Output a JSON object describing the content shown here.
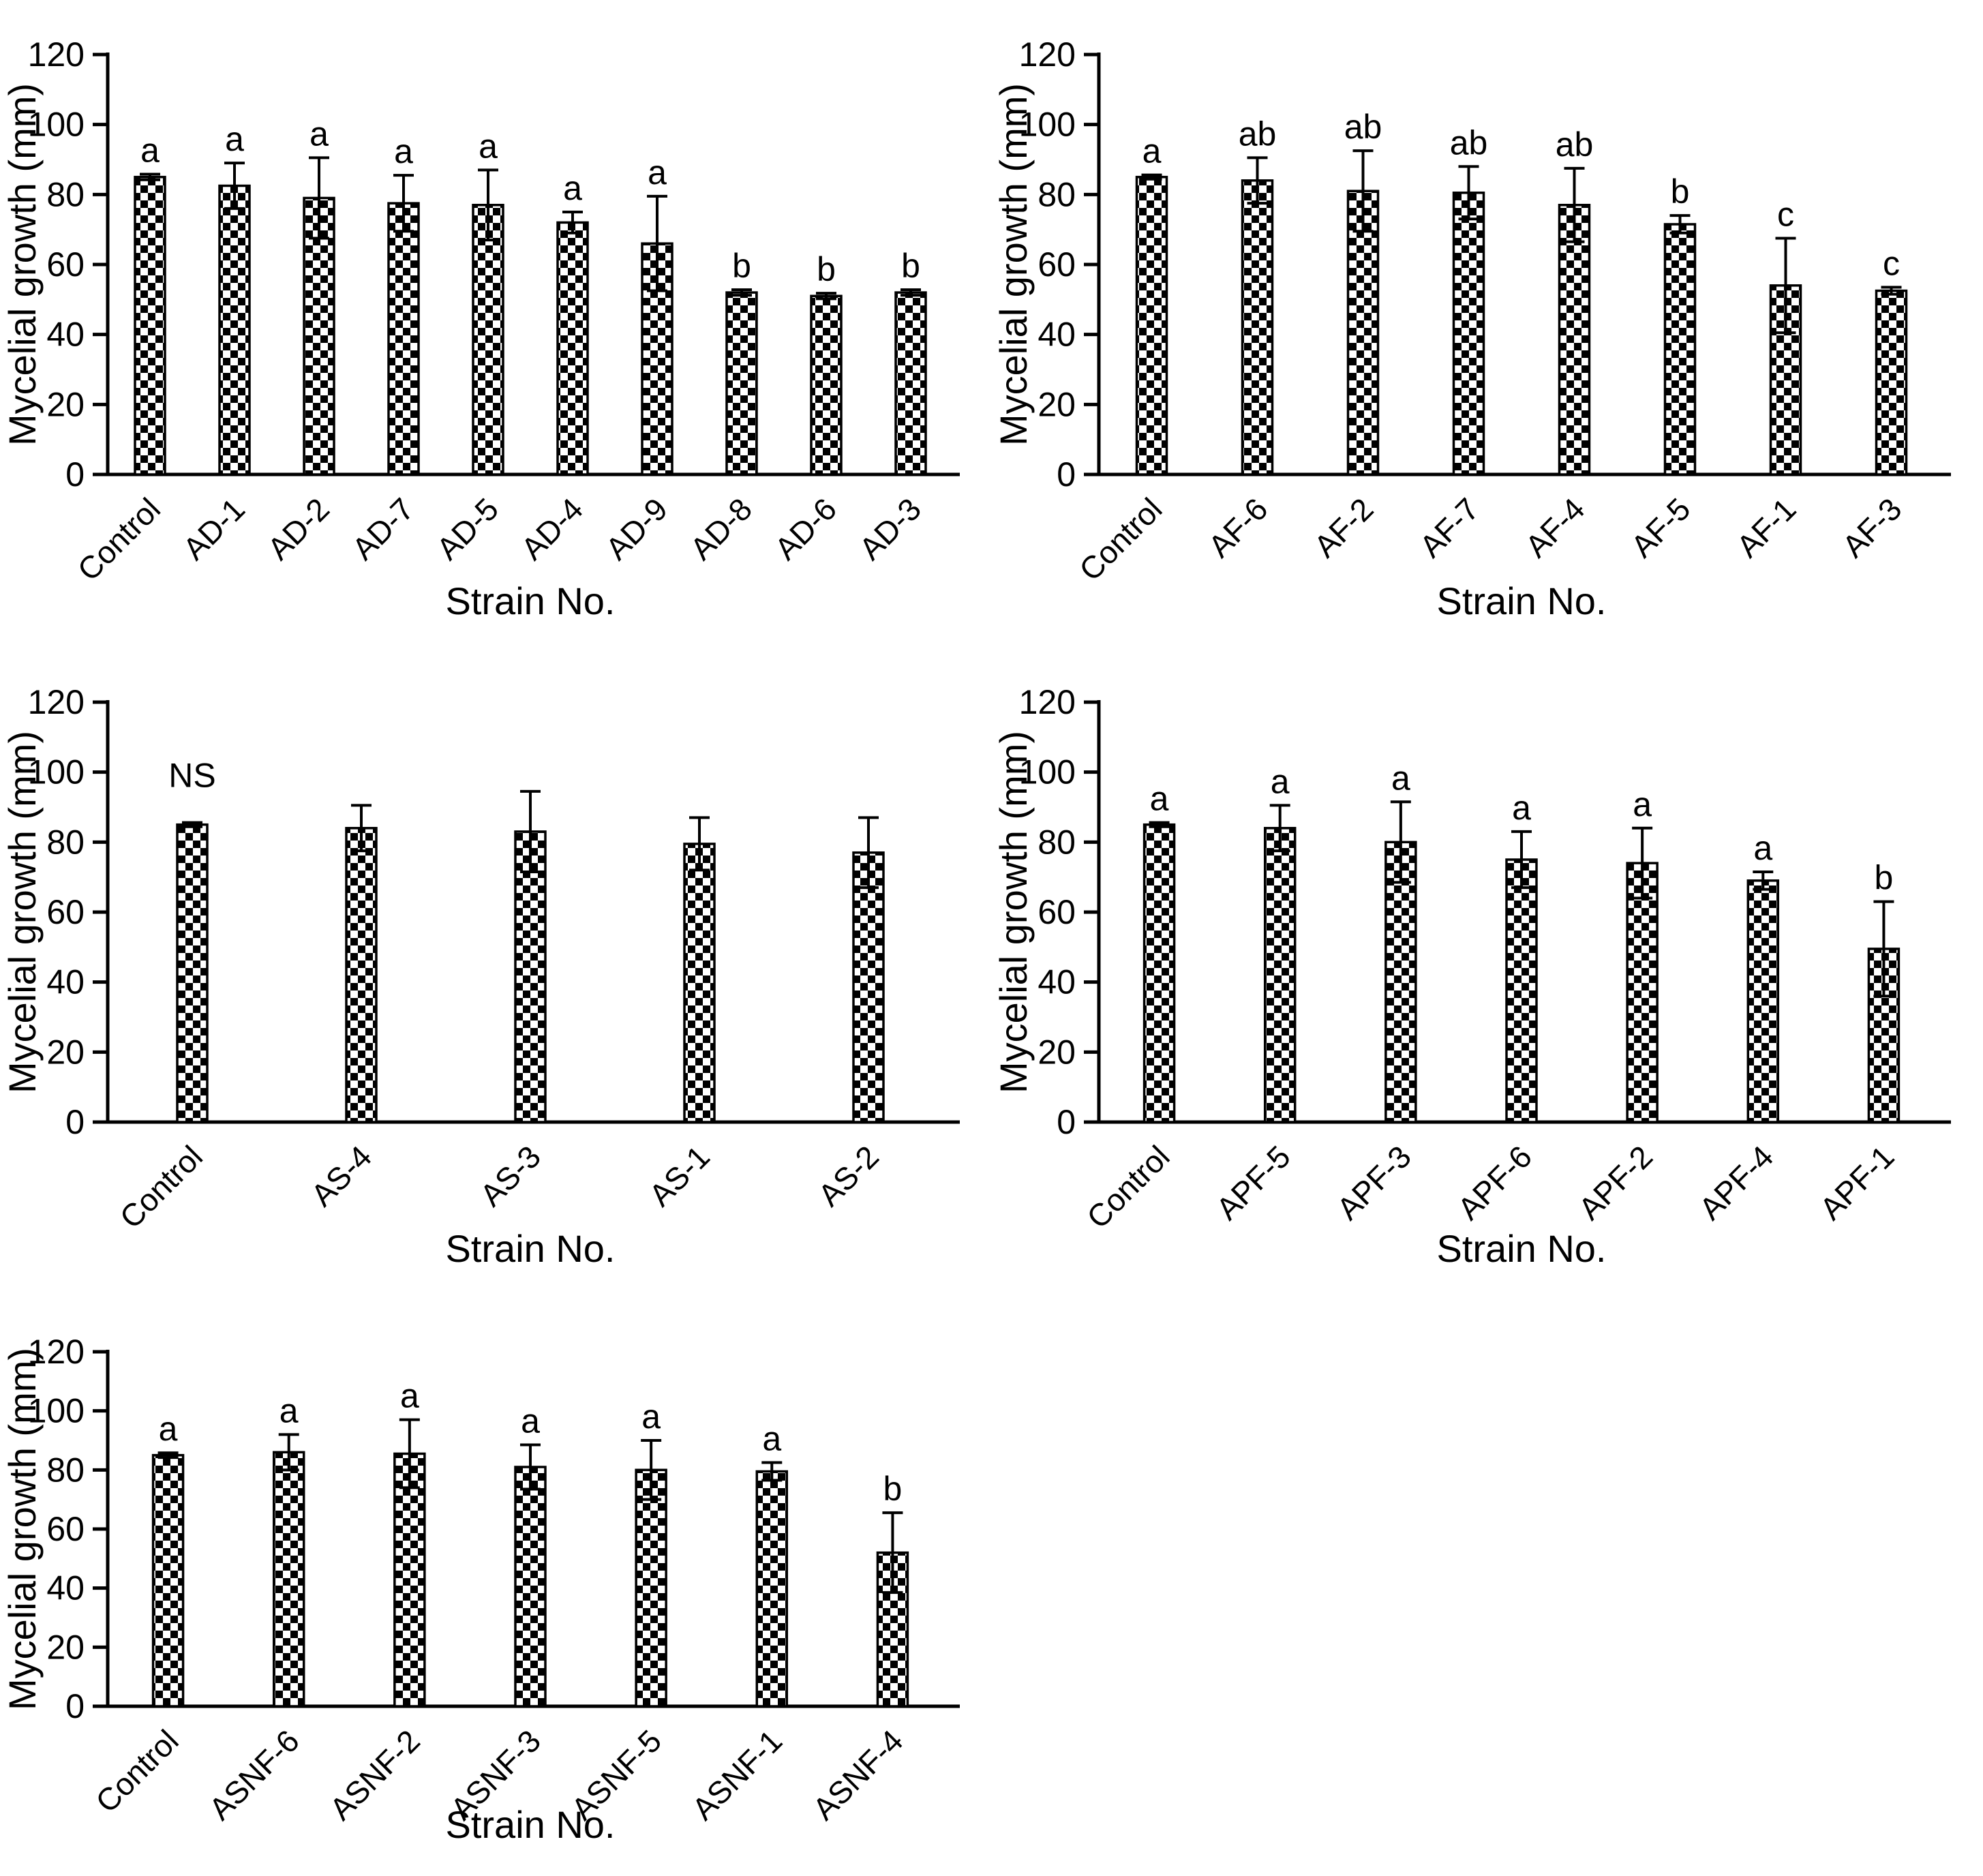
{
  "figure": {
    "background": "#ffffff",
    "ink_color": "#000000",
    "bar_fill": "black-white-checkerboard-pattern",
    "grid": false,
    "legend": null
  },
  "chart_data": [
    {
      "id": "AD",
      "type": "bar",
      "title": "",
      "xlabel": "Strain No.",
      "ylabel": "Mycelial growth (mm)",
      "ylim": [
        0,
        120
      ],
      "yticks": [
        0,
        20,
        40,
        60,
        80,
        100,
        120
      ],
      "categories": [
        "Control",
        "AD-1",
        "AD-2",
        "AD-7",
        "AD-5",
        "AD-4",
        "AD-9",
        "AD-8",
        "AD-6",
        "AD-3"
      ],
      "values": [
        85,
        82.5,
        79,
        77.5,
        77,
        72,
        66,
        52,
        51,
        52
      ],
      "errors": [
        0.8,
        6.5,
        11.5,
        8,
        10,
        3,
        13.5,
        0.8,
        0.8,
        0.8
      ],
      "letters": [
        "a",
        "a",
        "a",
        "a",
        "a",
        "a",
        "a",
        "b",
        "b",
        "b"
      ]
    },
    {
      "id": "AF",
      "type": "bar",
      "title": "",
      "xlabel": "Strain No.",
      "ylabel": "Mycelial growth (mm)",
      "ylim": [
        0,
        120
      ],
      "yticks": [
        0,
        20,
        40,
        60,
        80,
        100,
        120
      ],
      "categories": [
        "Control",
        "AF-6",
        "AF-2",
        "AF-7",
        "AF-4",
        "AF-5",
        "AF-1",
        "AF-3"
      ],
      "values": [
        85,
        84,
        81,
        80.5,
        77,
        71.5,
        54,
        52.5
      ],
      "errors": [
        0.6,
        6.5,
        11.5,
        7.5,
        10.5,
        2.5,
        13.5,
        1
      ],
      "letters": [
        "a",
        "ab",
        "ab",
        "ab",
        "ab",
        "b",
        "c",
        "c"
      ]
    },
    {
      "id": "AS",
      "type": "bar",
      "title": "",
      "xlabel": "Strain No.",
      "ylabel": "Mycelial growth (mm)",
      "ylim": [
        0,
        120
      ],
      "yticks": [
        0,
        20,
        40,
        60,
        80,
        100,
        120
      ],
      "categories": [
        "Control",
        "AS-4",
        "AS-3",
        "AS-1",
        "AS-2"
      ],
      "values": [
        85,
        84,
        83,
        79.5,
        77
      ],
      "errors": [
        0.6,
        6.5,
        11.5,
        7.5,
        10
      ],
      "letters": [
        "NS",
        "",
        "",
        "",
        ""
      ]
    },
    {
      "id": "APF",
      "type": "bar",
      "title": "",
      "xlabel": "Strain No.",
      "ylabel": "Mycelial growth (mm)",
      "ylim": [
        0,
        120
      ],
      "yticks": [
        0,
        20,
        40,
        60,
        80,
        100,
        120
      ],
      "categories": [
        "Control",
        "APF-5",
        "APF-3",
        "APF-6",
        "APF-2",
        "APF-4",
        "APF-1"
      ],
      "values": [
        85,
        84,
        80,
        75,
        74,
        69,
        49.5
      ],
      "errors": [
        0.6,
        6.5,
        11.5,
        8,
        10,
        2.5,
        13.5
      ],
      "letters": [
        "a",
        "a",
        "a",
        "a",
        "a",
        "a",
        "b"
      ]
    },
    {
      "id": "ASNF",
      "type": "bar",
      "title": "",
      "xlabel": "Strain No.",
      "ylabel": "Mycelial growth (mm)",
      "ylim": [
        0,
        120
      ],
      "yticks": [
        0,
        20,
        40,
        60,
        80,
        100,
        120
      ],
      "categories": [
        "Control",
        "ASNF-6",
        "ASNF-2",
        "ASNF-3",
        "ASNF-5",
        "ASNF-1",
        "ASNF-4"
      ],
      "values": [
        85,
        86,
        85.5,
        81,
        80,
        79.5,
        52
      ],
      "errors": [
        0.8,
        6,
        11.5,
        7.5,
        10,
        3,
        13.5
      ],
      "letters": [
        "a",
        "a",
        "a",
        "a",
        "a",
        "a",
        "b"
      ]
    }
  ]
}
